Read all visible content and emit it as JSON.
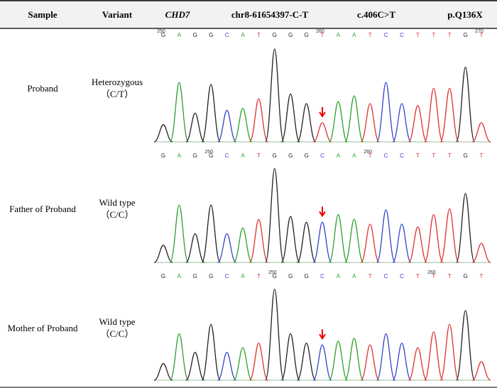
{
  "header": {
    "columns": [
      "Sample",
      "Variant",
      "CHD7",
      "chr8-61654397-C-T",
      "c.406C>T",
      "p.Q136X"
    ]
  },
  "rows": [
    {
      "sample": "Proband",
      "variant": [
        "Heterozygous",
        "（C/T）"
      ],
      "bases": [
        "G",
        "A",
        "G",
        "G",
        "C",
        "A",
        "T",
        "G",
        "G",
        "G",
        "T",
        "A",
        "A",
        "T",
        "C",
        "C",
        "T",
        "T",
        "T",
        "G",
        "T"
      ],
      "position_markers": [
        {
          "base": 0,
          "label": "250"
        },
        {
          "base": 10,
          "label": "260"
        },
        {
          "base": 20,
          "label": "270"
        }
      ]
    },
    {
      "sample": "Father of Proband",
      "variant": [
        "Wild type",
        "（C/C）"
      ],
      "bases": [
        "G",
        "A",
        "G",
        "G",
        "C",
        "A",
        "T",
        "G",
        "G",
        "G",
        "C",
        "A",
        "A",
        "T",
        "C",
        "C",
        "T",
        "T",
        "T",
        "G",
        "T"
      ],
      "position_markers": [
        {
          "base": 3,
          "label": "250"
        },
        {
          "base": 13,
          "label": "260"
        }
      ]
    },
    {
      "sample": "Mother of Proband",
      "variant": [
        "Wild type",
        "（C/C）"
      ],
      "bases": [
        "G",
        "A",
        "G",
        "G",
        "C",
        "A",
        "T",
        "G",
        "G",
        "G",
        "C",
        "A",
        "A",
        "T",
        "C",
        "C",
        "T",
        "T",
        "T",
        "G",
        "T"
      ],
      "position_markers": [
        {
          "base": 7,
          "label": "250"
        },
        {
          "base": 17,
          "label": "260"
        }
      ]
    }
  ]
}
